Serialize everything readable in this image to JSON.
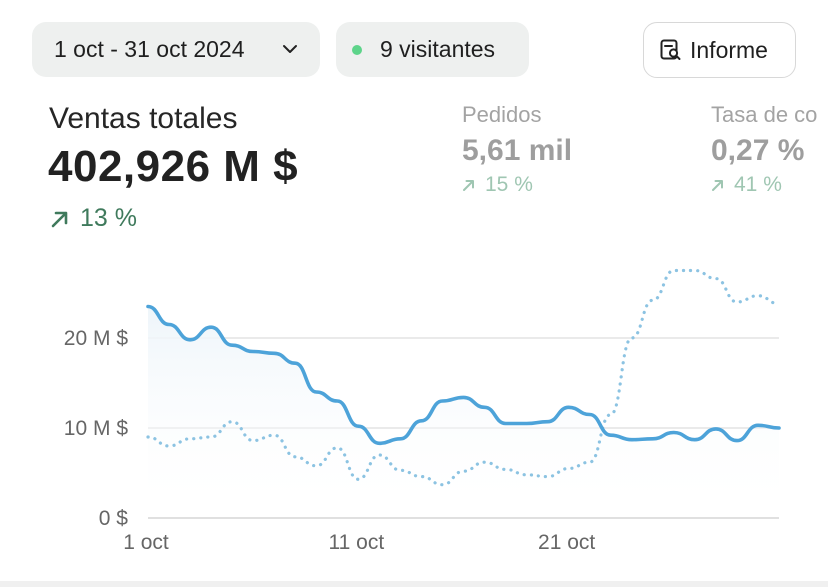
{
  "filters": {
    "date_range": "1 oct - 31 oct 2024",
    "visitors": "9 visitantes"
  },
  "actions": {
    "report_label": "Informe"
  },
  "metrics": {
    "main": {
      "label": "Ventas totales",
      "value": "402,926 M $",
      "change": "13 %"
    },
    "orders": {
      "label": "Pedidos",
      "value": "5,61 mil",
      "change": "15 %"
    },
    "conversion": {
      "label": "Tasa de co",
      "value": "0,27 %",
      "change": "41 %"
    }
  },
  "colors": {
    "accent_line": "#4da3d9",
    "positive_change": "#3f7a5c",
    "visitors_dot": "#5dd48a"
  },
  "chart_data": {
    "type": "line",
    "y_ticks": [
      "0 $",
      "10 M $",
      "20 M $"
    ],
    "x_ticks": [
      "1 oct",
      "11 oct",
      "21 oct"
    ],
    "ylim": [
      0,
      30
    ],
    "series": [
      {
        "style": "solid",
        "x": [
          1,
          2,
          3,
          4,
          5,
          6,
          7,
          8,
          9,
          10,
          11,
          12,
          13,
          14,
          15,
          16,
          17,
          18,
          19,
          20,
          21,
          22,
          23,
          24,
          25,
          26,
          27,
          28,
          29,
          30,
          31
        ],
        "values": [
          23.5,
          21.5,
          19.8,
          21.2,
          19.2,
          18.5,
          18.3,
          17.2,
          14.0,
          13.0,
          10.2,
          8.3,
          8.8,
          10.8,
          13.0,
          13.4,
          12.3,
          10.5,
          10.5,
          10.7,
          12.3,
          11.5,
          9.2,
          8.7,
          8.8,
          9.5,
          8.7,
          9.9,
          8.6,
          10.3,
          10.0
        ]
      },
      {
        "style": "dotted",
        "x": [
          1,
          2,
          3,
          4,
          5,
          6,
          7,
          8,
          9,
          10,
          11,
          12,
          13,
          14,
          15,
          16,
          17,
          18,
          19,
          20,
          21,
          22,
          23,
          24,
          25,
          26,
          27,
          28,
          29,
          30,
          31
        ],
        "values": [
          9.0,
          8.0,
          8.8,
          9.0,
          10.7,
          8.6,
          9.2,
          6.8,
          5.8,
          7.8,
          4.3,
          7.0,
          5.3,
          4.6,
          3.7,
          5.2,
          6.2,
          5.4,
          4.8,
          4.6,
          5.5,
          6.2,
          11.5,
          20.0,
          24.2,
          27.5,
          27.5,
          26.6,
          24.0,
          24.7,
          23.8
        ]
      }
    ]
  }
}
